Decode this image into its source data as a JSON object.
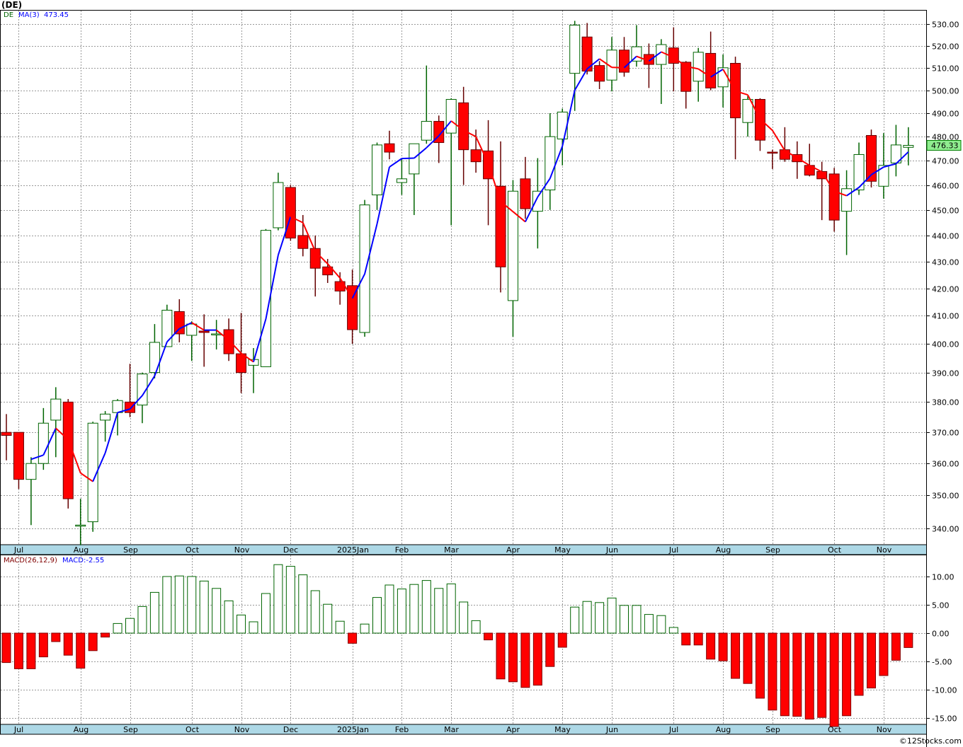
{
  "title": "(DE)",
  "legend": {
    "symbol": "DE",
    "ma_label": "MA(3)",
    "ma_value": "473.45",
    "macd_label": "MACD(26,12,9)",
    "macd_value": "MACD:-2.55"
  },
  "last_price_label": "476.33",
  "copyright": "©12Stocks.com",
  "colors": {
    "up": "#006400",
    "down": "#ff0000",
    "down_wick": "#660000",
    "ma_up": "#0000ff",
    "ma_down": "#ff0000",
    "axis_band": "#add8e6",
    "last_price_bg": "#90ee90"
  },
  "chart_data": [
    {
      "type": "candlestick",
      "title": "(DE)",
      "ylabel": "Price",
      "ylim": [
        335,
        533
      ],
      "yscale": "log",
      "yticks": [
        "340.00",
        "350.00",
        "360.00",
        "370.00",
        "380.00",
        "390.00",
        "400.00",
        "410.00",
        "420.00",
        "430.00",
        "440.00",
        "450.00",
        "460.00",
        "470.00",
        "480.00",
        "490.00",
        "500.00",
        "510.00",
        "520.00",
        "530.00"
      ],
      "month_ticks": [
        [
          1,
          "Jul"
        ],
        [
          6,
          "Aug"
        ],
        [
          10,
          "Sep"
        ],
        [
          15,
          "Oct"
        ],
        [
          19,
          "Nov"
        ],
        [
          23,
          "Dec"
        ],
        [
          28,
          "2025Jan"
        ],
        [
          32,
          "Feb"
        ],
        [
          36,
          "Mar"
        ],
        [
          41,
          "Apr"
        ],
        [
          45,
          "May"
        ],
        [
          49,
          "Jun"
        ],
        [
          54,
          "Jul"
        ],
        [
          58,
          "Aug"
        ],
        [
          62,
          "Sep"
        ],
        [
          67,
          "Oct"
        ],
        [
          71,
          "Nov"
        ]
      ],
      "ohlc": [
        [
          370,
          376,
          361,
          369
        ],
        [
          370,
          370,
          352,
          355
        ],
        [
          355,
          362,
          341,
          360
        ],
        [
          360,
          378,
          358,
          373
        ],
        [
          374,
          385,
          362,
          381
        ],
        [
          380,
          381,
          346,
          349
        ],
        [
          341,
          349,
          335,
          341
        ],
        [
          342,
          373.5,
          339,
          373
        ],
        [
          374,
          377,
          367,
          376
        ],
        [
          376.5,
          381,
          369,
          380.5
        ],
        [
          380,
          393,
          375,
          376.5
        ],
        [
          379,
          390,
          373,
          389.5
        ],
        [
          390,
          407,
          388,
          400.5
        ],
        [
          399,
          414,
          399,
          412
        ],
        [
          411.5,
          416,
          400.5,
          403.5
        ],
        [
          403,
          408,
          394,
          407
        ],
        [
          404.5,
          410.5,
          392,
          404
        ],
        [
          403.5,
          408.5,
          398,
          403.5
        ],
        [
          405,
          409,
          394,
          396.5
        ],
        [
          396.5,
          411,
          383,
          390
        ],
        [
          392.5,
          398.5,
          383,
          394.5
        ],
        [
          392,
          442.5,
          392,
          442
        ],
        [
          443,
          465,
          442,
          461
        ],
        [
          459,
          460,
          438,
          439
        ],
        [
          440,
          448,
          432,
          435
        ],
        [
          435,
          440,
          417,
          427.5
        ],
        [
          428,
          431,
          422,
          425
        ],
        [
          422.5,
          426,
          414,
          419
        ],
        [
          421,
          427,
          400,
          405
        ],
        [
          404,
          454,
          402.5,
          452
        ],
        [
          456,
          477.5,
          450,
          476.5
        ],
        [
          477,
          482.5,
          470.5,
          473.5
        ],
        [
          461,
          470.5,
          456,
          462.5
        ],
        [
          464.5,
          477,
          448,
          477
        ],
        [
          478.5,
          511,
          477,
          486.5
        ],
        [
          486.5,
          489,
          469,
          477.5
        ],
        [
          481.5,
          496.5,
          444,
          496
        ],
        [
          494.5,
          501.5,
          460,
          474.5
        ],
        [
          474.5,
          483,
          465,
          469.5
        ],
        [
          474,
          487,
          444,
          462.5
        ],
        [
          459.5,
          478,
          418.5,
          428
        ],
        [
          415.5,
          462,
          402.5,
          457.5
        ],
        [
          462.5,
          471.5,
          446.5,
          450.5
        ],
        [
          449.5,
          471,
          435,
          457.5
        ],
        [
          458,
          490,
          450,
          480
        ],
        [
          479,
          492,
          468,
          490.5
        ],
        [
          507.5,
          531.5,
          491,
          529.5
        ],
        [
          524,
          530.5,
          507,
          508.5
        ],
        [
          511,
          513,
          500.5,
          504
        ],
        [
          504.5,
          524,
          499.5,
          518
        ],
        [
          518,
          524,
          506,
          508
        ],
        [
          513,
          529.5,
          510.5,
          519.5
        ],
        [
          516,
          521,
          501,
          511.5
        ],
        [
          511.5,
          523,
          494,
          520.5
        ],
        [
          519,
          528.5,
          499.5,
          512
        ],
        [
          512.5,
          513,
          492,
          499.5
        ],
        [
          504,
          519,
          495,
          517
        ],
        [
          516.5,
          526.5,
          500,
          501
        ],
        [
          501.5,
          516,
          492.5,
          510
        ],
        [
          512,
          515,
          470.5,
          488
        ],
        [
          486,
          497.5,
          480,
          496
        ],
        [
          496,
          496.5,
          474,
          478.5
        ],
        [
          473.5,
          474.5,
          466.5,
          473.4
        ],
        [
          474.5,
          484,
          469.5,
          470.5
        ],
        [
          472.5,
          478,
          462.5,
          469.5
        ],
        [
          468,
          477,
          463.5,
          464
        ],
        [
          465.5,
          469.5,
          446,
          462.5
        ],
        [
          464.5,
          467,
          441.5,
          446
        ],
        [
          449.5,
          466,
          432.5,
          458.5
        ],
        [
          458,
          477.5,
          456,
          472.5
        ],
        [
          480.5,
          483,
          459,
          461.5
        ],
        [
          459.5,
          481.5,
          454.5,
          468
        ],
        [
          469,
          485,
          463.5,
          476.5
        ],
        [
          475.5,
          484,
          468,
          476.33
        ]
      ],
      "ma_period": 3
    },
    {
      "type": "bar",
      "title": "MACD(26,12,9)",
      "ylim": [
        -16.5,
        12.5
      ],
      "yticks": [
        "10.00",
        "5.00",
        "0.00",
        "-5.00",
        "-10.00",
        "-15.00"
      ],
      "values": [
        -5.2,
        -6.3,
        -6.3,
        -4.2,
        -1.5,
        -3.9,
        -6.2,
        -3.1,
        -0.7,
        1.7,
        2.6,
        4.7,
        7.2,
        10.0,
        10.1,
        10.0,
        9.2,
        7.9,
        5.7,
        3.2,
        2.0,
        7.0,
        12.1,
        11.8,
        10.3,
        7.5,
        5.1,
        2.1,
        -1.8,
        1.6,
        6.3,
        8.5,
        7.8,
        8.6,
        9.3,
        7.9,
        8.7,
        5.5,
        2.2,
        -1.2,
        -8.1,
        -8.6,
        -9.6,
        -9.2,
        -5.9,
        -2.5,
        4.6,
        5.6,
        5.4,
        6.2,
        4.9,
        4.9,
        3.3,
        3.1,
        1.0,
        -2.1,
        -2.1,
        -4.6,
        -4.9,
        -8.0,
        -8.9,
        -11.5,
        -13.6,
        -14.6,
        -14.7,
        -15.2,
        -14.9,
        -16.5,
        -14.6,
        -11.0,
        -9.7,
        -7.5,
        -4.8,
        -2.55
      ]
    }
  ]
}
